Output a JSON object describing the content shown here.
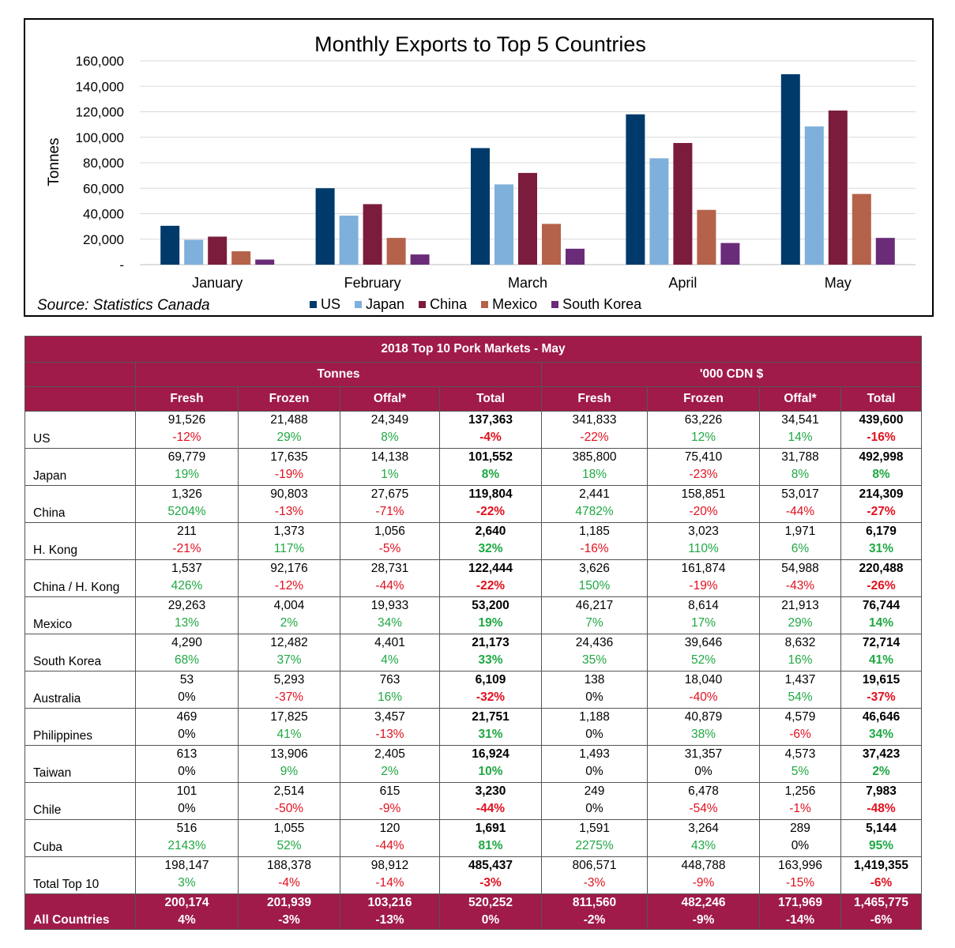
{
  "chart_data": {
    "type": "bar",
    "title": "Monthly Exports to Top 5 Countries",
    "ylabel": "Tonnes",
    "xlabel": "",
    "ylim": [
      0,
      160000
    ],
    "yticks": [
      "-",
      "20,000",
      "40,000",
      "60,000",
      "80,000",
      "100,000",
      "120,000",
      "140,000",
      "160,000"
    ],
    "grid": true,
    "legend_position": "bottom",
    "categories": [
      "January",
      "February",
      "March",
      "April",
      "May"
    ],
    "series": [
      {
        "name": "US",
        "color": "#003a6b",
        "values": [
          30500,
          60000,
          91500,
          118000,
          149500
        ]
      },
      {
        "name": "Japan",
        "color": "#7fb0db",
        "values": [
          19500,
          38500,
          63000,
          83500,
          108500
        ]
      },
      {
        "name": "China",
        "color": "#7b1c3d",
        "values": [
          22000,
          47500,
          72000,
          95500,
          121000
        ]
      },
      {
        "name": "Mexico",
        "color": "#b5624a",
        "values": [
          10500,
          21000,
          32000,
          43000,
          55500
        ]
      },
      {
        "name": "South Korea",
        "color": "#6a2c78",
        "values": [
          4000,
          8000,
          12500,
          17000,
          21000
        ]
      }
    ]
  },
  "source": {
    "label": "Source:",
    "value": "Statistics Canada"
  },
  "table": {
    "title": "2018 Top 10 Pork Markets - May",
    "group_headers": [
      "Tonnes",
      "'000 CDN $"
    ],
    "columns": [
      "Fresh",
      "Frozen",
      "Offal*",
      "Total",
      "Fresh",
      "Frozen",
      "Offal*",
      "Total"
    ],
    "rows": [
      {
        "country": "US",
        "values": [
          "91,526",
          "21,488",
          "24,349",
          "137,363",
          "341,833",
          "63,226",
          "34,541",
          "439,600"
        ],
        "changes": [
          "-12%",
          "29%",
          "8%",
          "-4%",
          "-22%",
          "12%",
          "14%",
          "-16%"
        ]
      },
      {
        "country": "Japan",
        "values": [
          "69,779",
          "17,635",
          "14,138",
          "101,552",
          "385,800",
          "75,410",
          "31,788",
          "492,998"
        ],
        "changes": [
          "19%",
          "-19%",
          "1%",
          "8%",
          "18%",
          "-23%",
          "8%",
          "8%"
        ]
      },
      {
        "country": "China",
        "values": [
          "1,326",
          "90,803",
          "27,675",
          "119,804",
          "2,441",
          "158,851",
          "53,017",
          "214,309"
        ],
        "changes": [
          "5204%",
          "-13%",
          "-71%",
          "-22%",
          "4782%",
          "-20%",
          "-44%",
          "-27%"
        ]
      },
      {
        "country": "H. Kong",
        "values": [
          "211",
          "1,373",
          "1,056",
          "2,640",
          "1,185",
          "3,023",
          "1,971",
          "6,179"
        ],
        "changes": [
          "-21%",
          "117%",
          "-5%",
          "32%",
          "-16%",
          "110%",
          "6%",
          "31%"
        ]
      },
      {
        "country": "China / H. Kong",
        "values": [
          "1,537",
          "92,176",
          "28,731",
          "122,444",
          "3,626",
          "161,874",
          "54,988",
          "220,488"
        ],
        "changes": [
          "426%",
          "-12%",
          "-44%",
          "-22%",
          "150%",
          "-19%",
          "-43%",
          "-26%"
        ]
      },
      {
        "country": "Mexico",
        "values": [
          "29,263",
          "4,004",
          "19,933",
          "53,200",
          "46,217",
          "8,614",
          "21,913",
          "76,744"
        ],
        "changes": [
          "13%",
          "2%",
          "34%",
          "19%",
          "7%",
          "17%",
          "29%",
          "14%"
        ]
      },
      {
        "country": "South Korea",
        "values": [
          "4,290",
          "12,482",
          "4,401",
          "21,173",
          "24,436",
          "39,646",
          "8,632",
          "72,714"
        ],
        "changes": [
          "68%",
          "37%",
          "4%",
          "33%",
          "35%",
          "52%",
          "16%",
          "41%"
        ]
      },
      {
        "country": "Australia",
        "values": [
          "53",
          "5,293",
          "763",
          "6,109",
          "138",
          "18,040",
          "1,437",
          "19,615"
        ],
        "changes": [
          "0%",
          "-37%",
          "16%",
          "-32%",
          "0%",
          "-40%",
          "54%",
          "-37%"
        ]
      },
      {
        "country": "Philippines",
        "values": [
          "469",
          "17,825",
          "3,457",
          "21,751",
          "1,188",
          "40,879",
          "4,579",
          "46,646"
        ],
        "changes": [
          "0%",
          "41%",
          "-13%",
          "31%",
          "0%",
          "38%",
          "-6%",
          "34%"
        ]
      },
      {
        "country": "Taiwan",
        "values": [
          "613",
          "13,906",
          "2,405",
          "16,924",
          "1,493",
          "31,357",
          "4,573",
          "37,423"
        ],
        "changes": [
          "0%",
          "9%",
          "2%",
          "10%",
          "0%",
          "0%",
          "5%",
          "2%"
        ]
      },
      {
        "country": "Chile",
        "values": [
          "101",
          "2,514",
          "615",
          "3,230",
          "249",
          "6,478",
          "1,256",
          "7,983"
        ],
        "changes": [
          "0%",
          "-50%",
          "-9%",
          "-44%",
          "0%",
          "-54%",
          "-1%",
          "-48%"
        ]
      },
      {
        "country": "Cuba",
        "values": [
          "516",
          "1,055",
          "120",
          "1,691",
          "1,591",
          "3,264",
          "289",
          "5,144"
        ],
        "changes": [
          "2143%",
          "52%",
          "-44%",
          "81%",
          "2275%",
          "43%",
          "0%",
          "95%"
        ]
      },
      {
        "country": "Total Top 10",
        "values": [
          "198,147",
          "188,378",
          "98,912",
          "485,437",
          "806,571",
          "448,788",
          "163,996",
          "1,419,355"
        ],
        "changes": [
          "3%",
          "-4%",
          "-14%",
          "-3%",
          "-3%",
          "-9%",
          "-15%",
          "-6%"
        ]
      }
    ],
    "all_countries": {
      "country": "All Countries",
      "values": [
        "200,174",
        "201,939",
        "103,216",
        "520,252",
        "811,560",
        "482,246",
        "171,969",
        "1,465,775"
      ],
      "changes": [
        "4%",
        "-3%",
        "-13%",
        "0%",
        "-2%",
        "-9%",
        "-14%",
        "-6%"
      ]
    }
  }
}
